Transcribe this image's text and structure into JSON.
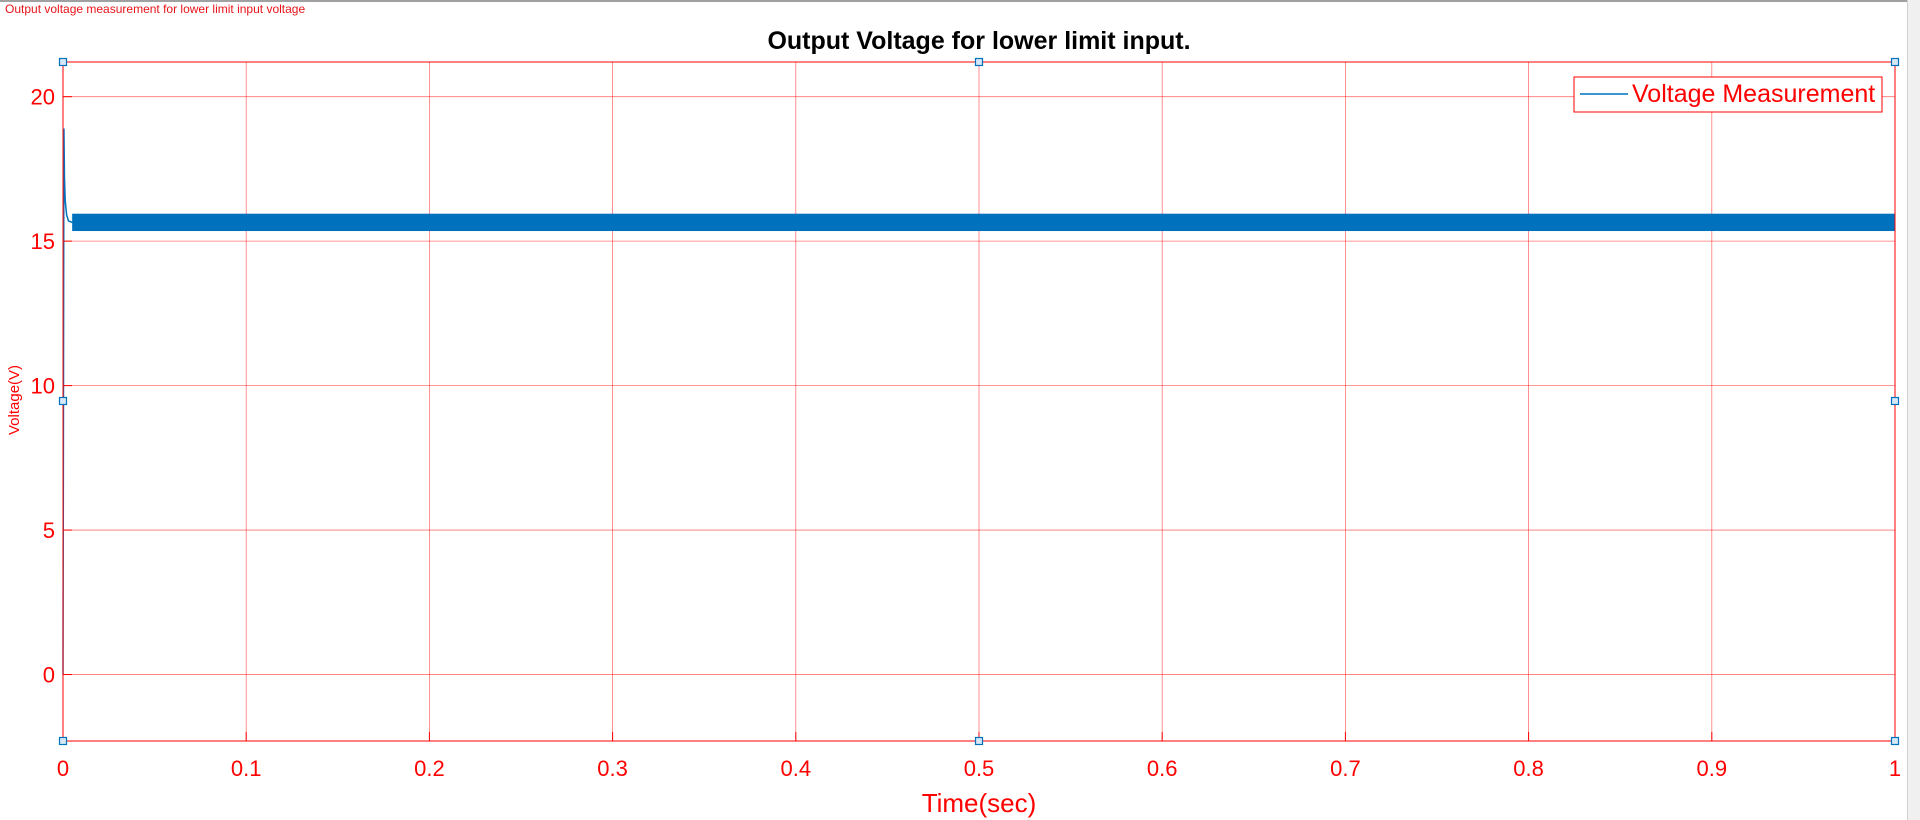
{
  "figure": {
    "caption": "Output voltage measurement for lower limit input voltage"
  },
  "colors": {
    "axis": "#ff0000",
    "grid": "#ff9999",
    "series": "#0072bd",
    "title": "#000000",
    "handle": "#0072bd"
  },
  "chart_data": {
    "type": "line",
    "title": "Output Voltage for lower limit input.",
    "xlabel": "Time(sec)",
    "ylabel": "Voltage(V)",
    "xlim": [
      0,
      1
    ],
    "ylim": [
      -2.3,
      21.2
    ],
    "xticks": [
      0,
      0.1,
      0.2,
      0.3,
      0.4,
      0.5,
      0.6,
      0.7,
      0.8,
      0.9,
      1
    ],
    "xtick_labels": [
      "0",
      "0.1",
      "0.2",
      "0.3",
      "0.4",
      "0.5",
      "0.6",
      "0.7",
      "0.8",
      "0.9",
      "1"
    ],
    "yticks": [
      0,
      5,
      10,
      15,
      20
    ],
    "ytick_labels": [
      "0",
      "5",
      "10",
      "15",
      "20"
    ],
    "grid": true,
    "legend_position": "top-right",
    "series": [
      {
        "name": "Voltage Measurement",
        "color": "#0072bd",
        "steady_state_band": [
          15.35,
          15.95
        ],
        "x": [
          0,
          0.0005,
          0.0008,
          0.0012,
          0.002,
          0.003,
          0.005,
          1
        ],
        "y": [
          0,
          18.9,
          17.2,
          16.4,
          15.9,
          15.7,
          15.65,
          15.65
        ]
      }
    ]
  }
}
